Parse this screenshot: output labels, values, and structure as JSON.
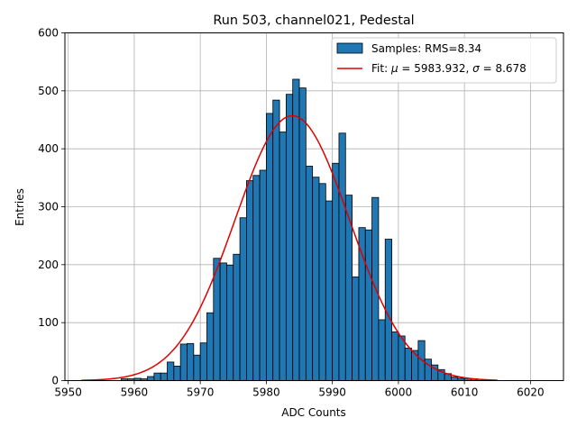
{
  "chart_data": {
    "type": "bar",
    "title": "Run 503, channel021, Pedestal",
    "xlabel": "ADC Counts",
    "ylabel": "Entries",
    "xlim": [
      5949.5,
      6025
    ],
    "ylim": [
      0,
      600
    ],
    "x_ticks": [
      5950,
      5960,
      5970,
      5980,
      5990,
      6000,
      6010,
      6020
    ],
    "y_ticks": [
      0,
      100,
      200,
      300,
      400,
      500,
      600
    ],
    "grid": true,
    "legend_position": "top-right",
    "bin_width": 1,
    "bin_starts": [
      5958,
      5959,
      5960,
      5961,
      5962,
      5963,
      5964,
      5965,
      5966,
      5967,
      5968,
      5969,
      5970,
      5971,
      5972,
      5973,
      5974,
      5975,
      5976,
      5977,
      5978,
      5979,
      5980,
      5981,
      5982,
      5983,
      5984,
      5985,
      5986,
      5987,
      5988,
      5989,
      5990,
      5991,
      5992,
      5993,
      5994,
      5995,
      5996,
      5997,
      5998,
      5999,
      6000,
      6001,
      6002,
      6003,
      6004,
      6005,
      6006,
      6007,
      6008,
      6009,
      6010,
      6011
    ],
    "counts": [
      3,
      3,
      4,
      3,
      7,
      13,
      13,
      32,
      25,
      63,
      64,
      44,
      65,
      117,
      211,
      203,
      199,
      218,
      281,
      345,
      354,
      363,
      461,
      484,
      429,
      494,
      520,
      505,
      370,
      351,
      340,
      310,
      375,
      427,
      320,
      179,
      264,
      260,
      316,
      105,
      244,
      84,
      77,
      56,
      52,
      69,
      37,
      27,
      19,
      12,
      6,
      4,
      4,
      3
    ],
    "series": [
      {
        "name": "Samples: RMS=8.34",
        "kind": "histogram",
        "color": "#1f77b4",
        "edge_color": "#000000"
      },
      {
        "name": "Fit: μ = 5983.932, σ = 8.678",
        "kind": "gaussian-fit",
        "color": "#e00000",
        "mu": 5983.932,
        "sigma": 8.678,
        "amplitude": 457,
        "x_range": [
          5952,
          6015
        ]
      }
    ]
  },
  "legend": {
    "samples_label": "Samples: RMS=8.34",
    "fit_label_prefix": "Fit: ",
    "fit_mu_symbol": "μ",
    "fit_mu_value": " = 5983.932, ",
    "fit_sigma_symbol": "σ",
    "fit_sigma_value": " = 8.678"
  }
}
